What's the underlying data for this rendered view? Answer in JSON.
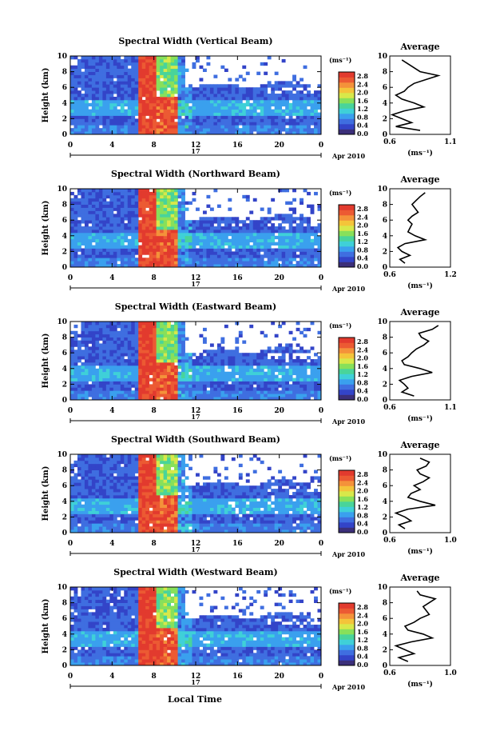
{
  "figure": {
    "date_label": "Apr 2010",
    "day_label": "17",
    "xlabel": "Local Time"
  },
  "colorbar": {
    "unit": "(ms⁻¹)",
    "ticks": [
      "0.0",
      "0.4",
      "0.8",
      "1.2",
      "1.6",
      "2.0",
      "2.4",
      "2.8"
    ],
    "colors": [
      "#3b2f7a",
      "#3344c8",
      "#3f6ee0",
      "#3aa0ee",
      "#3fd0d8",
      "#49d49a",
      "#88e05a",
      "#d8e84a",
      "#f4c43a",
      "#f4923a",
      "#ec5a33",
      "#e23a2e"
    ]
  },
  "colors": {
    "low": "#3346c8",
    "mid": "#3b8fe6",
    "high": "#e8402e",
    "missing": "#ffffff"
  },
  "chart_data": [
    {
      "type": "heatmap",
      "title": "Spectral Width (Vertical Beam)",
      "ylabel": "Height (km)",
      "xlabel": "Local Time",
      "xticks": [
        "0",
        "4",
        "8",
        "12",
        "16",
        "20",
        "0"
      ],
      "yticks": [
        "0",
        "2",
        "4",
        "6",
        "8",
        "10"
      ],
      "xlim": [
        0,
        24
      ],
      "ylim": [
        0,
        10
      ],
      "color_unit": "ms⁻¹",
      "color_range": [
        0.0,
        2.8
      ],
      "profile": {
        "title": "Average",
        "xlabel": "(ms⁻¹)",
        "xticks": [
          "0.6",
          "1.1"
        ],
        "xlim": [
          0.6,
          1.1
        ],
        "heights": [
          0.5,
          1,
          1.5,
          2,
          2.5,
          3,
          3.5,
          4,
          4.5,
          5,
          5.5,
          6,
          6.5,
          7,
          7.5,
          8,
          8.5,
          9,
          9.5
        ],
        "values": [
          0.85,
          0.65,
          0.78,
          0.7,
          0.62,
          0.72,
          0.88,
          0.8,
          0.7,
          0.65,
          0.72,
          0.75,
          0.8,
          0.9,
          1.0,
          0.85,
          0.8,
          0.75,
          0.7
        ]
      }
    },
    {
      "type": "heatmap",
      "title": "Spectral Width (Northward Beam)",
      "ylabel": "Height (km)",
      "xlabel": "Local Time",
      "xticks": [
        "0",
        "4",
        "8",
        "12",
        "16",
        "20",
        "0"
      ],
      "yticks": [
        "0",
        "2",
        "4",
        "6",
        "8",
        "10"
      ],
      "xlim": [
        0,
        24
      ],
      "ylim": [
        0,
        10
      ],
      "color_unit": "ms⁻¹",
      "color_range": [
        0.0,
        2.8
      ],
      "profile": {
        "title": "Average",
        "xlabel": "(ms⁻¹)",
        "xticks": [
          "0.6",
          "1.2"
        ],
        "xlim": [
          0.6,
          1.2
        ],
        "heights": [
          0.5,
          1,
          1.5,
          2,
          2.5,
          3,
          3.5,
          4,
          4.5,
          5,
          5.5,
          6,
          6.5,
          7,
          7.5,
          8,
          8.5,
          9,
          9.5
        ],
        "values": [
          0.75,
          0.7,
          0.8,
          0.72,
          0.68,
          0.75,
          0.95,
          0.85,
          0.78,
          0.8,
          0.82,
          0.78,
          0.82,
          0.88,
          0.85,
          0.82,
          0.86,
          0.9,
          0.95
        ]
      }
    },
    {
      "type": "heatmap",
      "title": "Spectral Width (Eastward Beam)",
      "ylabel": "Height (km)",
      "xlabel": "Local Time",
      "xticks": [
        "0",
        "4",
        "8",
        "12",
        "16",
        "20",
        "0"
      ],
      "yticks": [
        "0",
        "2",
        "4",
        "6",
        "8",
        "10"
      ],
      "xlim": [
        0,
        24
      ],
      "ylim": [
        0,
        10
      ],
      "color_unit": "ms⁻¹",
      "color_range": [
        0.0,
        2.8
      ],
      "profile": {
        "title": "Average",
        "xlabel": "(ms⁻¹)",
        "xticks": [
          "0.6",
          "1.1"
        ],
        "xlim": [
          0.6,
          1.1
        ],
        "heights": [
          0.5,
          1,
          1.5,
          2,
          2.5,
          3,
          3.5,
          4,
          4.5,
          5,
          5.5,
          6,
          6.5,
          7,
          7.5,
          8,
          8.5,
          9,
          9.5
        ],
        "values": [
          0.8,
          0.7,
          0.75,
          0.72,
          0.68,
          0.78,
          0.95,
          0.85,
          0.72,
          0.7,
          0.75,
          0.78,
          0.82,
          0.88,
          0.92,
          0.86,
          0.84,
          0.95,
          1.0
        ]
      }
    },
    {
      "type": "heatmap",
      "title": "Spectral Width (Southward Beam)",
      "ylabel": "Height (km)",
      "xlabel": "Local Time",
      "xticks": [
        "0",
        "4",
        "8",
        "12",
        "16",
        "20",
        "0"
      ],
      "yticks": [
        "0",
        "2",
        "4",
        "6",
        "8",
        "10"
      ],
      "xlim": [
        0,
        24
      ],
      "ylim": [
        0,
        10
      ],
      "color_unit": "ms⁻¹",
      "color_range": [
        0.0,
        2.8
      ],
      "profile": {
        "title": "Average",
        "xlabel": "(ms⁻¹)",
        "xticks": [
          "0.6",
          "1.0"
        ],
        "xlim": [
          0.6,
          1.0
        ],
        "heights": [
          0.5,
          1,
          1.5,
          2,
          2.5,
          3,
          3.5,
          4,
          4.5,
          5,
          5.5,
          6,
          6.5,
          7,
          7.5,
          8,
          8.5,
          9,
          9.5
        ],
        "values": [
          0.7,
          0.66,
          0.74,
          0.7,
          0.64,
          0.72,
          0.9,
          0.8,
          0.72,
          0.74,
          0.8,
          0.76,
          0.82,
          0.86,
          0.8,
          0.78,
          0.84,
          0.86,
          0.8
        ]
      }
    },
    {
      "type": "heatmap",
      "title": "Spectral Width (Westward Beam)",
      "ylabel": "Height (km)",
      "xlabel": "Local Time",
      "xticks": [
        "0",
        "4",
        "8",
        "12",
        "16",
        "20",
        "0"
      ],
      "yticks": [
        "0",
        "2",
        "4",
        "6",
        "8",
        "10"
      ],
      "xlim": [
        0,
        24
      ],
      "ylim": [
        0,
        10
      ],
      "color_unit": "ms⁻¹",
      "color_range": [
        0.0,
        2.8
      ],
      "profile": {
        "title": "Average",
        "xlabel": "(ms⁻¹)",
        "xticks": [
          "0.6",
          "1.0"
        ],
        "xlim": [
          0.6,
          1.0
        ],
        "heights": [
          0.5,
          1,
          1.5,
          2,
          2.5,
          3,
          3.5,
          4,
          4.5,
          5,
          5.5,
          6,
          6.5,
          7,
          7.5,
          8,
          8.5,
          9,
          9.5
        ],
        "values": [
          0.72,
          0.66,
          0.76,
          0.7,
          0.64,
          0.74,
          0.88,
          0.82,
          0.72,
          0.7,
          0.76,
          0.8,
          0.86,
          0.84,
          0.82,
          0.86,
          0.9,
          0.8,
          0.78
        ]
      }
    }
  ]
}
